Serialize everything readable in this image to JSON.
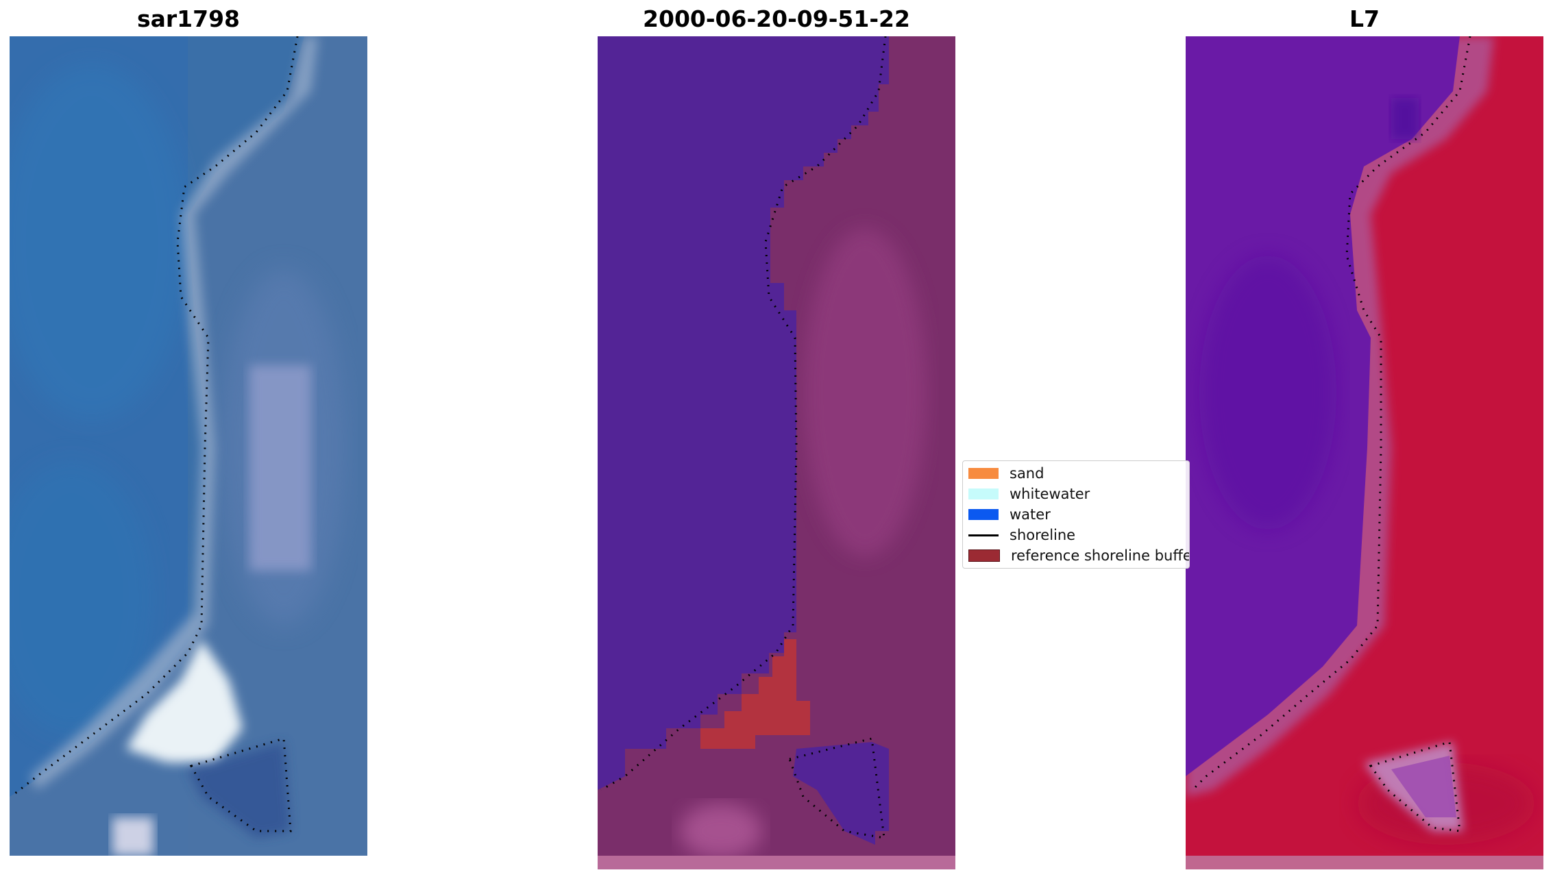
{
  "panels": [
    {
      "title": "sar1798",
      "kind": "rgb"
    },
    {
      "title": "2000-06-20-09-51-22",
      "kind": "classified"
    },
    {
      "title": "L7",
      "kind": "index"
    }
  ],
  "legend": {
    "items": [
      {
        "label": "sand",
        "color": "#f78b3f",
        "type": "patch"
      },
      {
        "label": "whitewater",
        "color": "#c6fbfb",
        "type": "patch"
      },
      {
        "label": "water",
        "color": "#0b59f0",
        "type": "patch"
      },
      {
        "label": "shoreline",
        "color": "#000000",
        "type": "line"
      },
      {
        "label": "reference shoreline buffer",
        "color": "#9b2a33",
        "type": "patch"
      }
    ]
  },
  "colors": {
    "sea_blue": "#3a6fa8",
    "class_water": "#532496",
    "class_land": "#7a2e6a",
    "class_sand": "#b3333f",
    "index_water": "#6a1aa6",
    "index_land": "#c4123d"
  }
}
